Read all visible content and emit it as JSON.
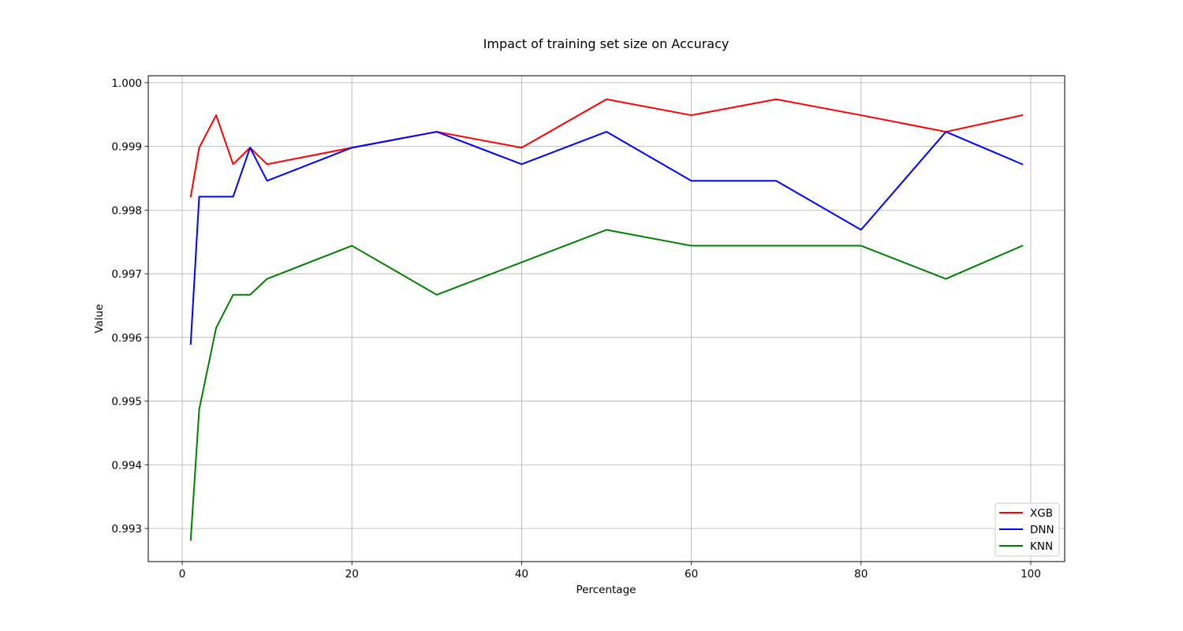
{
  "chart_data": {
    "type": "line",
    "title": "Impact of training set size on Accuracy",
    "xlabel": "Percentage",
    "ylabel": "Value",
    "xlim": [
      -4,
      104
    ],
    "ylim": [
      0.99248,
      1.00011
    ],
    "xticks": [
      0,
      20,
      40,
      60,
      80,
      100
    ],
    "xtick_labels": [
      "0",
      "20",
      "40",
      "60",
      "80",
      "100"
    ],
    "yticks": [
      0.993,
      0.994,
      0.995,
      0.996,
      0.997,
      0.998,
      0.999,
      1.0
    ],
    "ytick_labels": [
      "0.993",
      "0.994",
      "0.995",
      "0.996",
      "0.997",
      "0.998",
      "0.999",
      "1.000"
    ],
    "grid": true,
    "legend_position": "lower-right",
    "x": [
      1,
      2,
      4,
      6,
      8,
      10,
      20,
      30,
      40,
      50,
      60,
      70,
      80,
      90,
      99
    ],
    "series": [
      {
        "name": "XGB",
        "color": "#ff0000",
        "values": [
          0.99821,
          0.99898,
          0.99949,
          0.99872,
          0.99898,
          0.99872,
          0.99898,
          0.99923,
          0.99898,
          0.99974,
          0.99949,
          0.99974,
          0.99949,
          0.99923,
          0.99949
        ]
      },
      {
        "name": "DNN",
        "color": "#0000ff",
        "values": [
          0.9959,
          0.99821,
          0.99821,
          0.99821,
          0.99898,
          0.99846,
          0.99898,
          0.99923,
          0.99872,
          0.99923,
          0.99846,
          0.99846,
          0.99769,
          0.99923,
          0.99872
        ]
      },
      {
        "name": "KNN",
        "color": "#008000",
        "values": [
          0.99282,
          0.99487,
          0.99615,
          0.99667,
          0.99667,
          0.99692,
          0.99744,
          0.99667,
          0.99718,
          0.99769,
          0.99744,
          0.99744,
          0.99744,
          0.99692,
          0.99744
        ]
      }
    ]
  }
}
